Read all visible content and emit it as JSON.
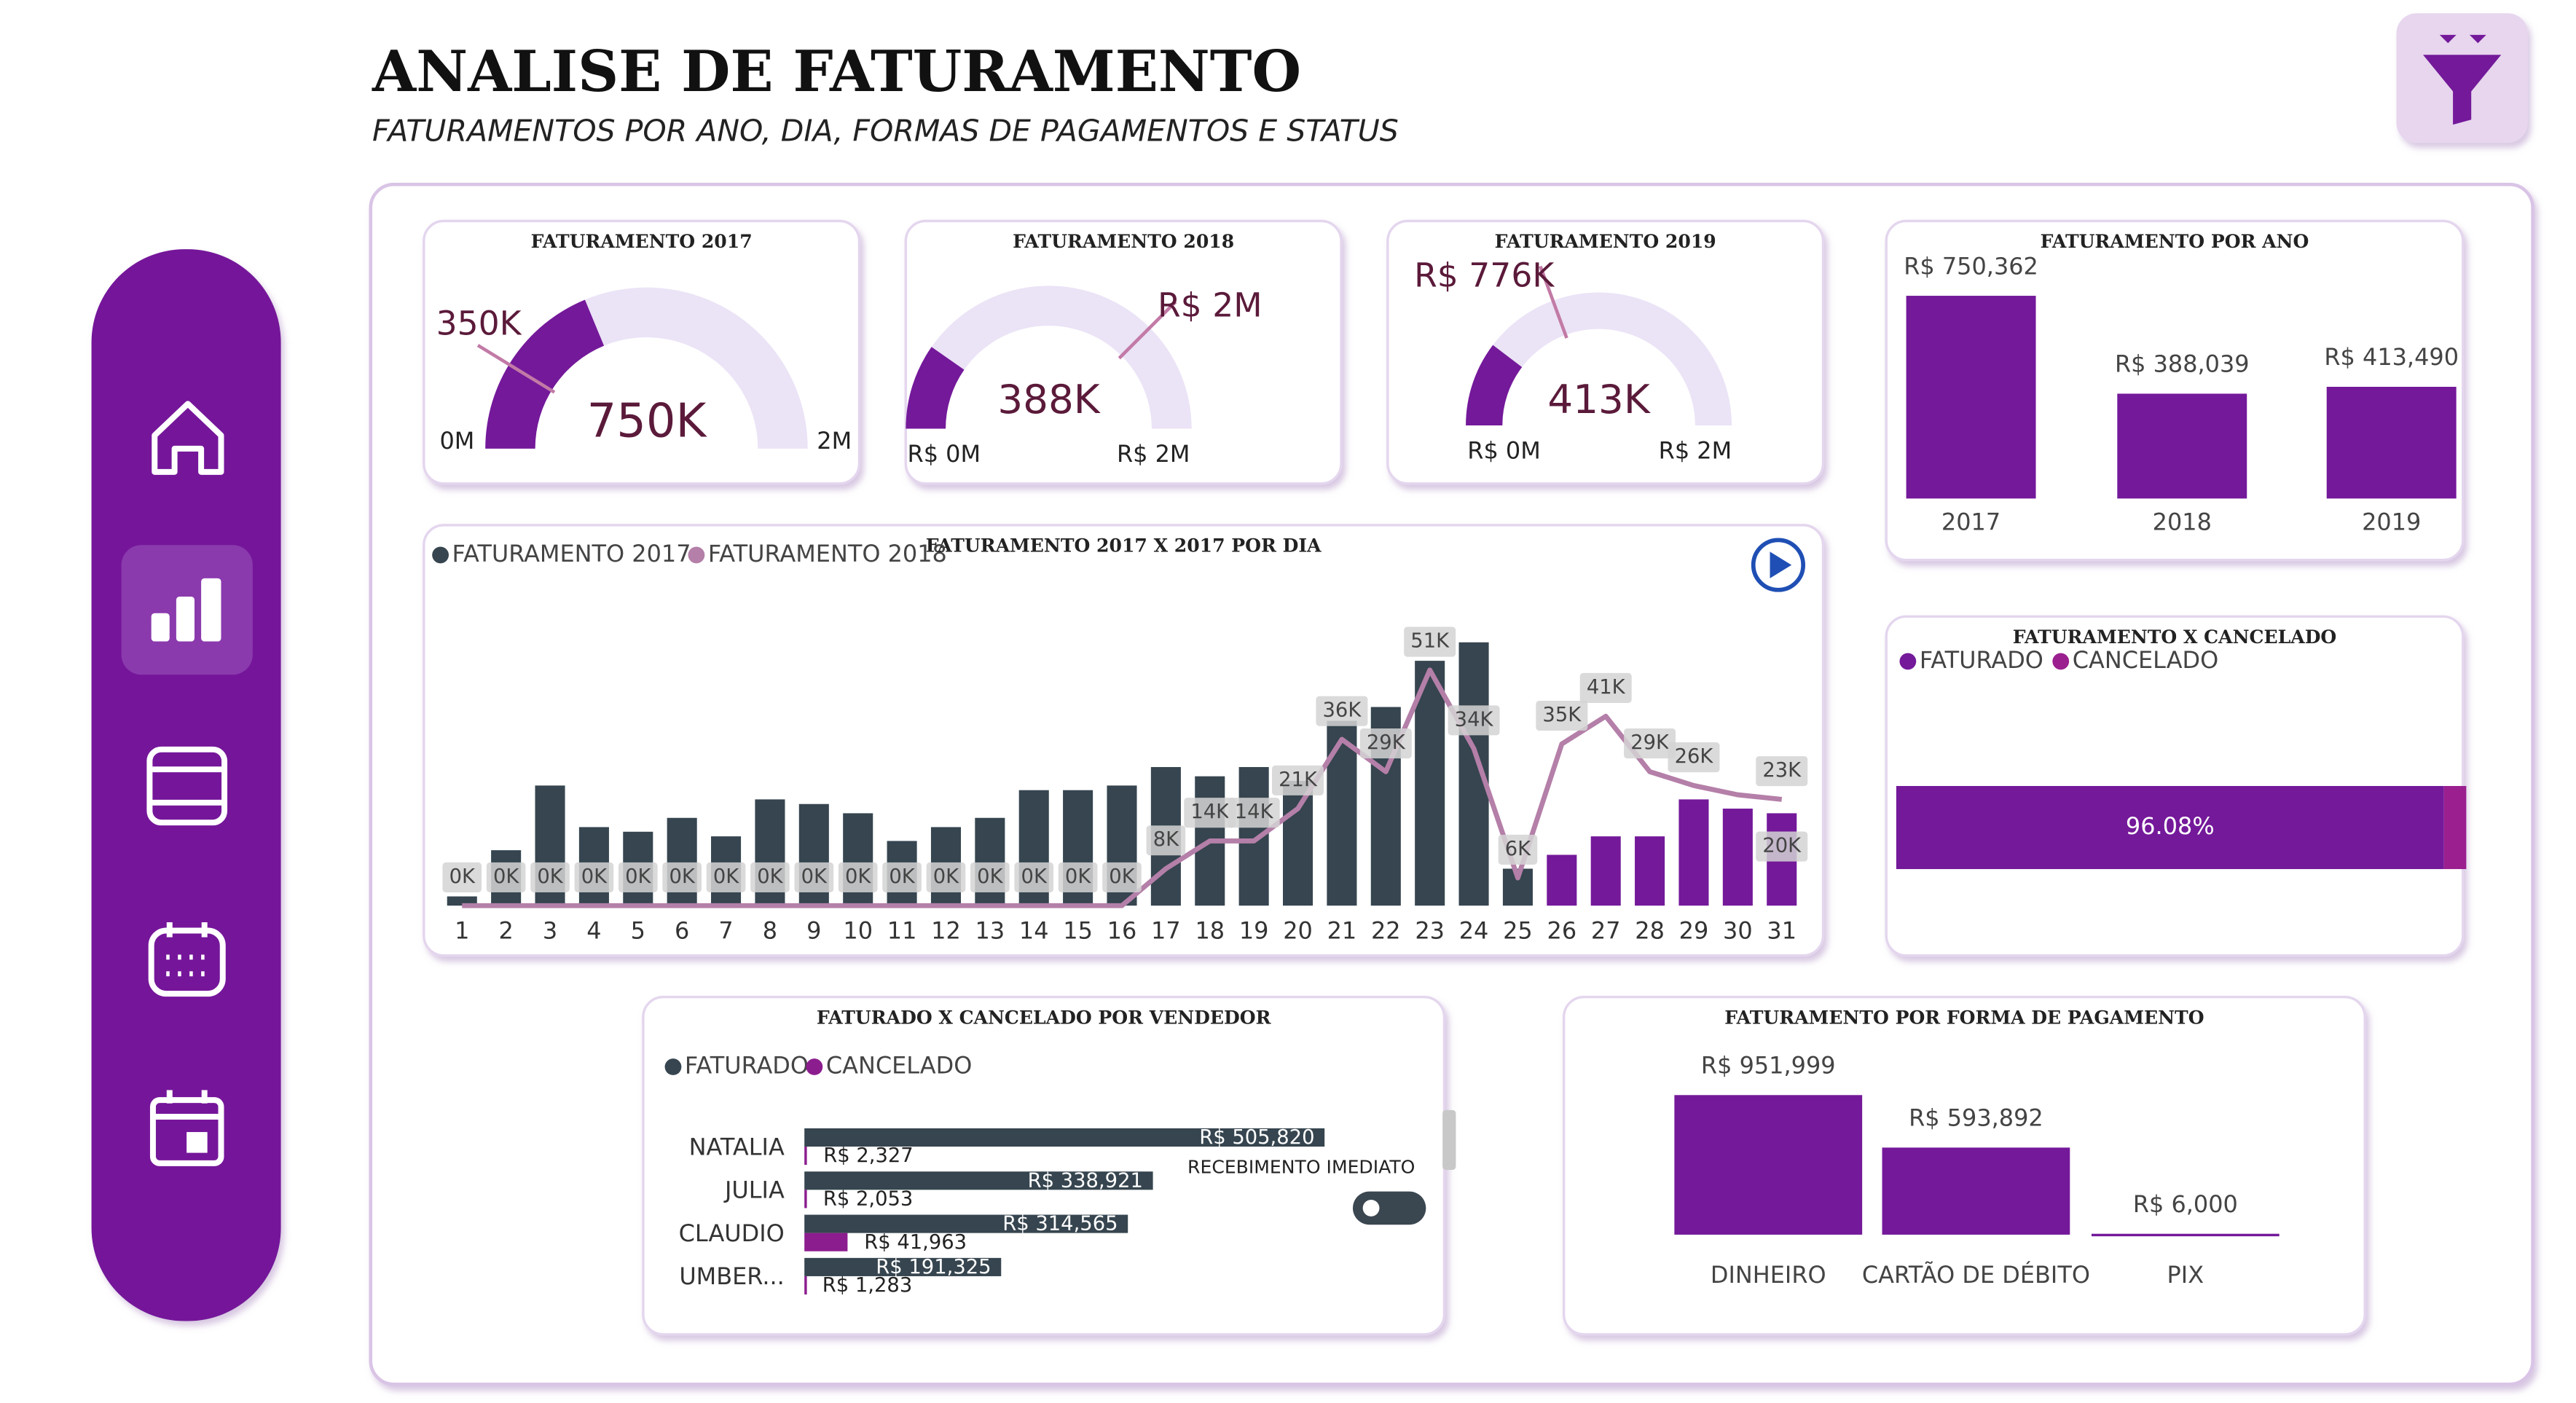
{
  "header": {
    "title": "ANALISE DE FATURAMENTO",
    "subtitle": "FATURAMENTOS POR ANO, DIA, FORMAS DE PAGAMENTOS E STATUS"
  },
  "chart_data": [
    {
      "type": "gauge",
      "title": "FATURAMENTO 2017",
      "value": 750362,
      "value_label": "750K",
      "min": {
        "value": 0,
        "label": "0M"
      },
      "max": {
        "value": 2000000,
        "label": "2M"
      },
      "target": {
        "value": 350000,
        "label": "350K"
      },
      "color": "#74199a",
      "track_color": "#ebe3f6"
    },
    {
      "type": "gauge",
      "title": "FATURAMENTO 2018",
      "value": 388039,
      "value_label": "388K",
      "min": {
        "value": 0,
        "label": "R$ 0M"
      },
      "max": {
        "value": 2000000,
        "label": "R$ 2M"
      },
      "target": {
        "value": 1500000,
        "label": "R$ 2M"
      },
      "color": "#74199a",
      "track_color": "#ebe3f6"
    },
    {
      "type": "gauge",
      "title": "FATURAMENTO 2019",
      "value": 413490,
      "value_label": "413K",
      "min": {
        "value": 0,
        "label": "R$ 0M"
      },
      "max": {
        "value": 2000000,
        "label": "R$ 2M"
      },
      "target": {
        "value": 776000,
        "label": "R$ 776K"
      },
      "color": "#74199a",
      "track_color": "#ebe3f6"
    },
    {
      "type": "bar",
      "title": "FATURAMENTO POR ANO",
      "categories": [
        "2017",
        "2018",
        "2019"
      ],
      "values": [
        750362,
        388039,
        413490
      ],
      "value_labels": [
        "R$ 750,362",
        "R$ 388,039",
        "R$ 413,490"
      ],
      "color": "#74199a"
    },
    {
      "type": "combo",
      "title": "FATURAMENTO 2017 X 2017 POR DIA",
      "categories": [
        "1",
        "2",
        "3",
        "4",
        "5",
        "6",
        "7",
        "8",
        "9",
        "10",
        "11",
        "12",
        "13",
        "14",
        "15",
        "16",
        "17",
        "18",
        "19",
        "20",
        "21",
        "22",
        "23",
        "24",
        "25",
        "26",
        "27",
        "28",
        "29",
        "30",
        "31"
      ],
      "series": [
        {
          "name": "FATURAMENTO 2017",
          "type": "bar",
          "color": "#36454f",
          "colors": [
            "#36454f",
            "#36454f",
            "#36454f",
            "#36454f",
            "#36454f",
            "#36454f",
            "#36454f",
            "#36454f",
            "#36454f",
            "#36454f",
            "#36454f",
            "#36454f",
            "#36454f",
            "#36454f",
            "#36454f",
            "#36454f",
            "#36454f",
            "#36454f",
            "#36454f",
            "#36454f",
            "#36454f",
            "#36454f",
            "#36454f",
            "#36454f",
            "#36454f",
            "#74199a",
            "#74199a",
            "#74199a",
            "#74199a",
            "#74199a",
            "#74199a"
          ],
          "values": [
            2,
            12,
            26,
            17,
            16,
            19,
            15,
            23,
            22,
            20,
            14,
            17,
            19,
            25,
            25,
            26,
            30,
            28,
            30,
            27,
            40,
            43,
            53,
            57,
            8,
            11,
            15,
            15,
            23,
            21,
            20
          ],
          "value_labels": [
            null,
            null,
            null,
            null,
            null,
            null,
            null,
            null,
            null,
            null,
            null,
            null,
            null,
            null,
            null,
            null,
            null,
            null,
            null,
            null,
            null,
            null,
            null,
            null,
            null,
            null,
            null,
            null,
            null,
            null,
            "20K"
          ]
        },
        {
          "name": "FATURAMENTO 2018",
          "type": "line",
          "color": "#b47fa8",
          "values": [
            0,
            0,
            0,
            0,
            0,
            0,
            0,
            0,
            0,
            0,
            0,
            0,
            0,
            0,
            0,
            0,
            8,
            14,
            14,
            21,
            36,
            29,
            51,
            34,
            6,
            35,
            41,
            29,
            26,
            24,
            23
          ],
          "value_labels": [
            "0K",
            "0K",
            "0K",
            "0K",
            "0K",
            "0K",
            "0K",
            "0K",
            "0K",
            "0K",
            "0K",
            "0K",
            "0K",
            "0K",
            "0K",
            "0K",
            "8K",
            "14K",
            "14K",
            "21K",
            "36K",
            "29K",
            "51K",
            "34K",
            "6K",
            "35K",
            "41K",
            "29K",
            "26K",
            null,
            "23K"
          ]
        }
      ]
    },
    {
      "type": "stacked_hbar",
      "title": "FATURAMENTO X CANCELADO",
      "series": [
        {
          "name": "FATURADO",
          "color": "#74199a",
          "values": [
            96.08
          ],
          "value_labels": [
            "96.08%"
          ]
        },
        {
          "name": "CANCELADO",
          "color": "#9b1f8f",
          "values": [
            3.92
          ]
        }
      ]
    },
    {
      "type": "hbar",
      "title": "FATURADO X CANCELADO POR VENDEDOR",
      "categories": [
        "NATALIA",
        "JULIA",
        "CLAUDIO",
        "UMBER..."
      ],
      "series": [
        {
          "name": "FATURADO",
          "color": "#36454f",
          "values": [
            505820,
            338921,
            314565,
            191325
          ],
          "value_labels": [
            "R$ 505,820",
            "R$ 338,921",
            "R$ 314,565",
            "R$ 191,325"
          ]
        },
        {
          "name": "CANCELADO",
          "color": "#8c1d8e",
          "values": [
            2327,
            2053,
            41963,
            1283
          ],
          "value_labels": [
            "R$ 2,327",
            "R$ 2,053",
            "R$ 41,963",
            "R$ 1,283"
          ]
        }
      ],
      "toggle_label": "RECEBIMENTO IMEDIATO"
    },
    {
      "type": "bar",
      "title": "FATURAMENTO POR FORMA DE PAGAMENTO",
      "categories": [
        "DINHEIRO",
        "CARTÃO DE DÉBITO",
        "PIX"
      ],
      "values": [
        951999,
        593892,
        6000
      ],
      "value_labels": [
        "R$ 951,999",
        "R$ 593,892",
        "R$ 6,000"
      ],
      "color": "#74199a"
    }
  ]
}
